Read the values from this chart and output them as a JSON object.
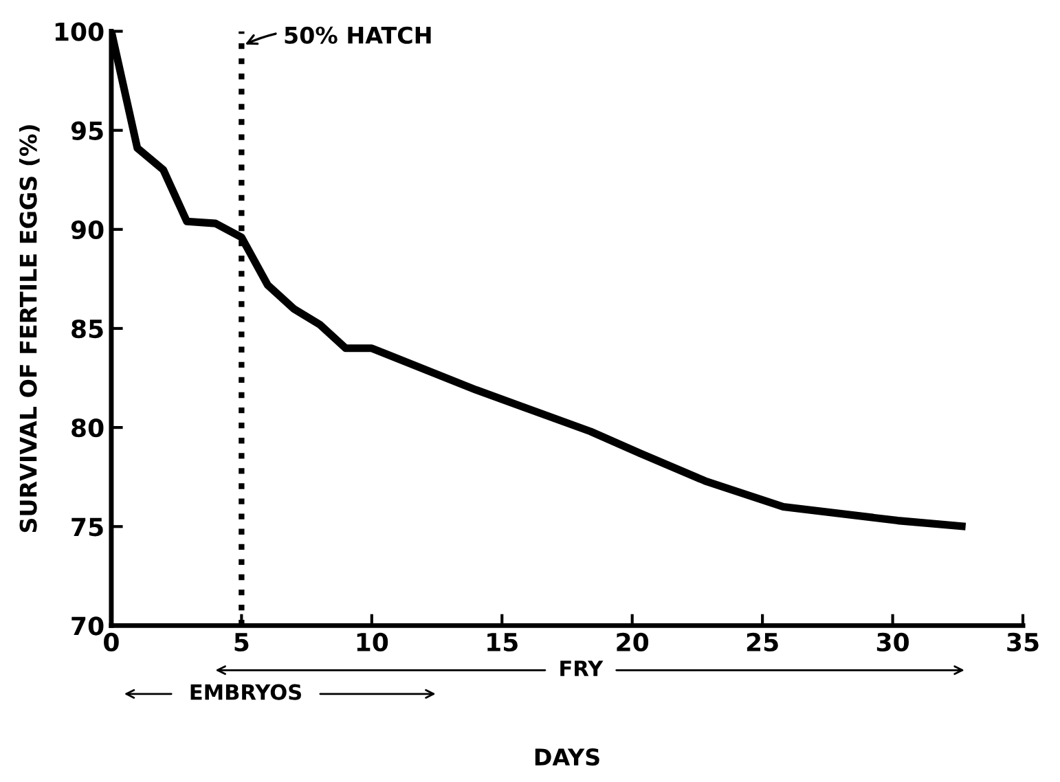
{
  "chart_data": {
    "type": "line",
    "xlabel": "DAYS",
    "ylabel": "SURVIVAL OF FERTILE EGGS (%)",
    "series": [
      {
        "color": "#000000",
        "x": [
          0,
          1,
          2,
          2.9,
          4,
          5,
          6,
          7,
          8,
          9,
          10,
          14,
          18.4,
          20.3,
          22.8,
          25.8,
          30.2,
          32.8
        ],
        "values": [
          100,
          94.1,
          93.0,
          90.4,
          90.3,
          89.6,
          87.2,
          86.0,
          85.2,
          84.0,
          84.0,
          81.9,
          79.8,
          78.7,
          77.3,
          76.0,
          75.3,
          75.0
        ]
      }
    ],
    "xlim": [
      0,
      35
    ],
    "ylim": [
      70,
      100
    ],
    "xticks": [
      0,
      5,
      10,
      15,
      20,
      25,
      30,
      35
    ],
    "yticks": [
      70,
      75,
      80,
      85,
      90,
      95,
      100
    ],
    "grid": false,
    "legend": false,
    "marker": "none",
    "line_style": "solid",
    "ref_lines": [
      {
        "axis": "x",
        "value": 5,
        "label": "50% HATCH",
        "line_style": "dotted",
        "color": "#000000"
      }
    ],
    "annotations": [
      "EMBRYOS",
      "FRY"
    ]
  }
}
